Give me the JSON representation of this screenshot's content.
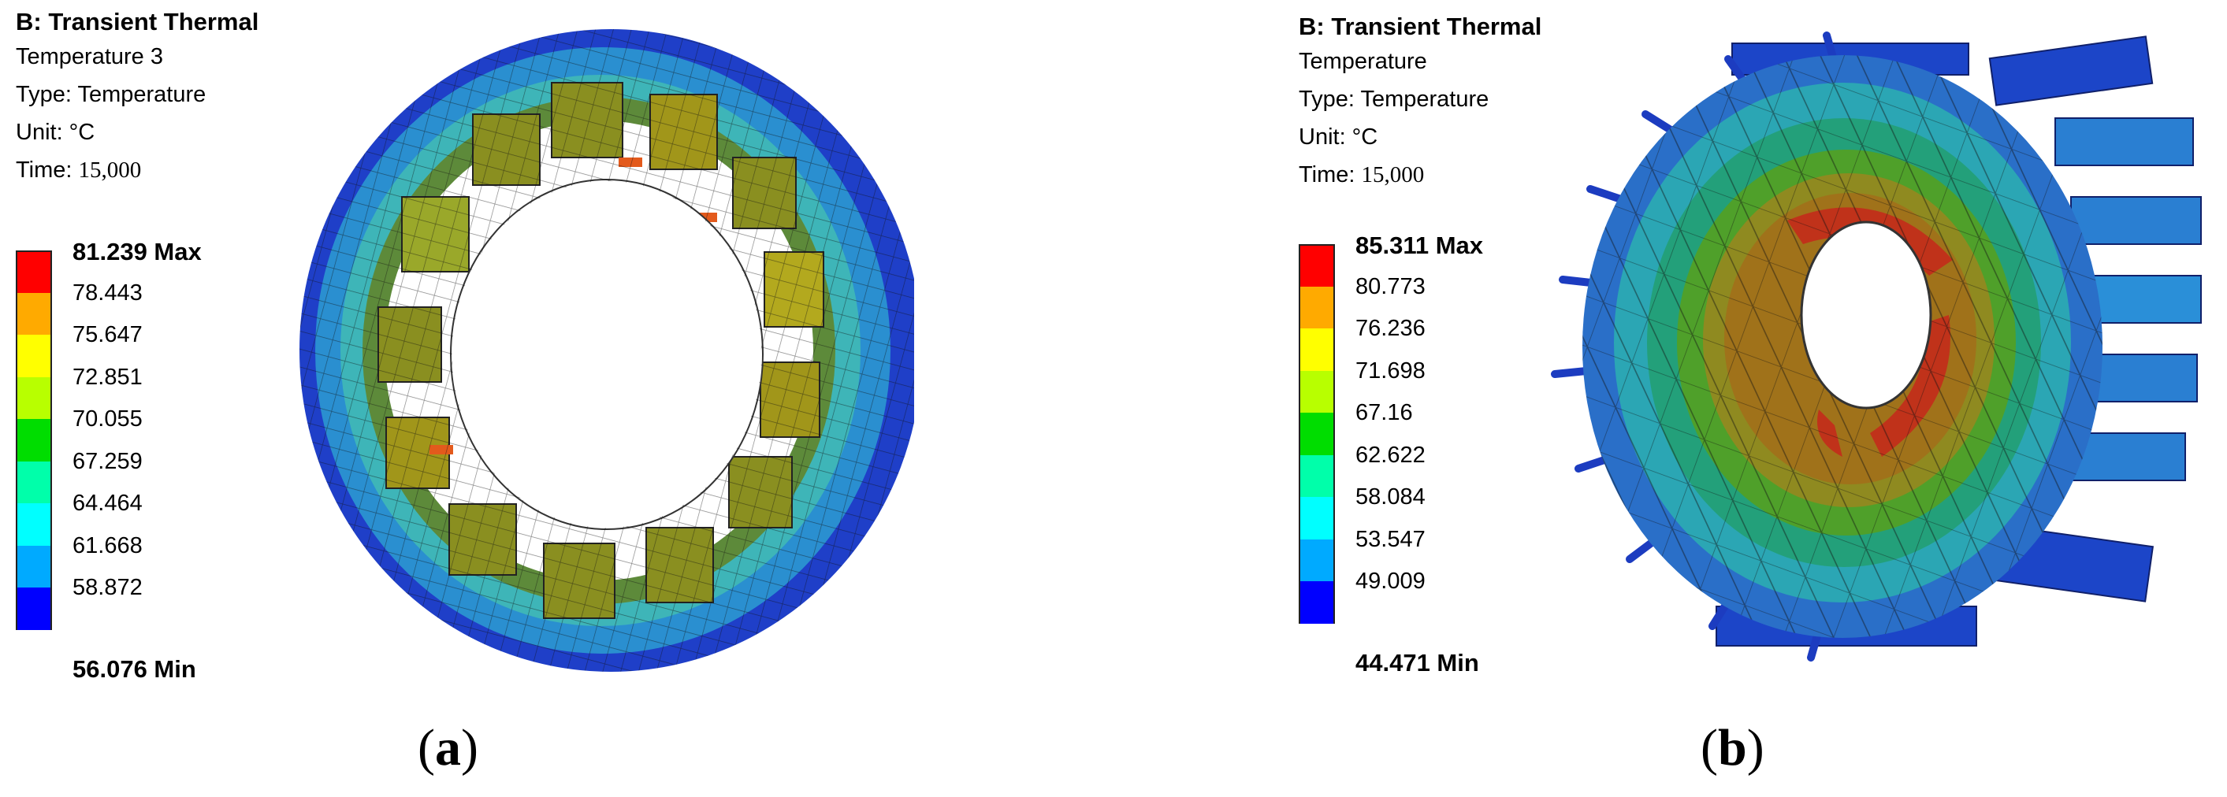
{
  "panels": [
    {
      "id": "a",
      "title": "B: Transient Thermal",
      "name": "Temperature 3",
      "type_line": "Type: Temperature",
      "unit_line": "Unit: °C",
      "time_label": "Time:",
      "time_value": "15,000",
      "legend": {
        "max_label": "81.239 Max",
        "levels": [
          "78.443",
          "75.647",
          "72.851",
          "70.055",
          "67.259",
          "64.464",
          "61.668",
          "58.872"
        ],
        "min_label": "56.076 Min",
        "colors": [
          "#ff0000",
          "#ffaa00",
          "#ffff00",
          "#b8ff00",
          "#00dd00",
          "#00ffaa",
          "#00ffff",
          "#00aaff",
          "#0000ff"
        ]
      },
      "caption_letter": "a"
    },
    {
      "id": "b",
      "title": "B: Transient Thermal",
      "name": "Temperature",
      "type_line": "Type: Temperature",
      "unit_line": "Unit: °C",
      "time_label": "Time:",
      "time_value": "15,000",
      "legend": {
        "max_label": "85.311 Max",
        "levels": [
          "80.773",
          "76.236",
          "71.698",
          "67.16",
          "62.622",
          "58.084",
          "53.547",
          "49.009"
        ],
        "min_label": "44.471 Min",
        "colors": [
          "#ff0000",
          "#ffaa00",
          "#ffff00",
          "#b8ff00",
          "#00dd00",
          "#00ffaa",
          "#00ffff",
          "#00aaff",
          "#0000ff"
        ]
      },
      "caption_letter": "b"
    }
  ]
}
